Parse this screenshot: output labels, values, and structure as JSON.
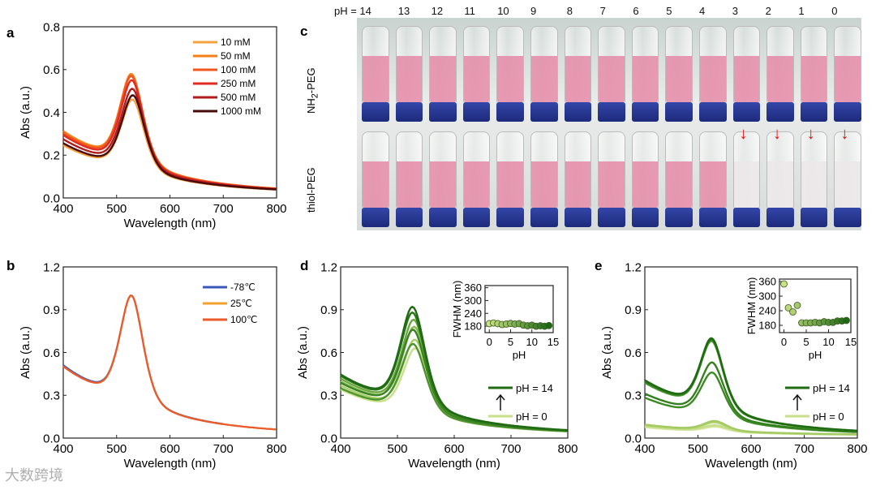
{
  "panel_labels": {
    "a": "a",
    "b": "b",
    "c": "c",
    "d": "d",
    "e": "e"
  },
  "watermark": "大数跨境",
  "photo": {
    "ph_prefix": "pH = ",
    "ph_values": [
      "14",
      "13",
      "12",
      "11",
      "10",
      "9",
      "8",
      "7",
      "6",
      "5",
      "4",
      "3",
      "2",
      "1",
      "0"
    ],
    "row_top_label": "NH",
    "row_top_sub": "2",
    "row_top_suffix": "-PEG",
    "row_bottom_label": "thiol-PEG",
    "liquid_color": "#e48aa6",
    "clear_color": "#ece8ea",
    "arrow_color": "#e01010",
    "bottom_row_arrows_on_ph": [
      "3",
      "2",
      "1",
      "0"
    ]
  },
  "chart_data": [
    {
      "id": "a",
      "type": "line",
      "xlabel": "Wavelength (nm)",
      "ylabel": "Abs (a.u.)",
      "xlim": [
        400,
        800
      ],
      "ylim": [
        0,
        0.8
      ],
      "xticks": [
        "400",
        "500",
        "600",
        "700",
        "800"
      ],
      "yticks": [
        "0.0",
        "0.2",
        "0.4",
        "0.6",
        "0.8"
      ],
      "legend_position": "top-right",
      "series": [
        {
          "name": "10 mM",
          "color": "#f5a33c",
          "peak_nm": 530,
          "peak_abs": 0.46,
          "abs_400": 0.24
        },
        {
          "name": "50 mM",
          "color": "#f57f17",
          "peak_nm": 528,
          "peak_abs": 0.58,
          "abs_400": 0.31
        },
        {
          "name": "100 mM",
          "color": "#f0561e",
          "peak_nm": 528,
          "peak_abs": 0.57,
          "abs_400": 0.3
        },
        {
          "name": "250 mM",
          "color": "#e02a22",
          "peak_nm": 529,
          "peak_abs": 0.55,
          "abs_400": 0.29
        },
        {
          "name": "500 mM",
          "color": "#b01b1b",
          "peak_nm": 530,
          "peak_abs": 0.51,
          "abs_400": 0.27
        },
        {
          "name": "1000 mM",
          "color": "#4a0a0a",
          "peak_nm": 531,
          "peak_abs": 0.48,
          "abs_400": 0.25
        }
      ]
    },
    {
      "id": "b",
      "type": "line",
      "xlabel": "Wavelength (nm)",
      "ylabel": "Abs (a.u.)",
      "xlim": [
        400,
        800
      ],
      "ylim": [
        0,
        1.2
      ],
      "xticks": [
        "400",
        "500",
        "600",
        "700",
        "800"
      ],
      "yticks": [
        "0.0",
        "0.3",
        "0.6",
        "0.9",
        "1.2"
      ],
      "legend_position": "top-right",
      "series": [
        {
          "name": "-78℃",
          "color": "#3b58b8",
          "peak_nm": 528,
          "peak_abs": 1.0,
          "abs_400": 0.52,
          "end_nm": 700
        },
        {
          "name": "25℃",
          "color": "#f3a02c",
          "peak_nm": 528,
          "peak_abs": 1.0,
          "abs_400": 0.51,
          "end_nm": 800
        },
        {
          "name": "100℃",
          "color": "#ea5a2a",
          "peak_nm": 528,
          "peak_abs": 1.0,
          "abs_400": 0.51,
          "end_nm": 800
        }
      ]
    },
    {
      "id": "d",
      "type": "line",
      "xlabel": "Wavelength (nm)",
      "ylabel": "Abs (a.u.)",
      "xlim": [
        400,
        800
      ],
      "ylim": [
        0,
        1.2
      ],
      "xticks": [
        "400",
        "500",
        "600",
        "700",
        "800"
      ],
      "yticks": [
        "0.0",
        "0.3",
        "0.6",
        "0.9",
        "1.2"
      ],
      "legend": {
        "top": "pH = 14",
        "bottom": "pH = 0",
        "top_color": "#1e6b12",
        "bottom_color": "#c9e08a"
      },
      "series": [
        {
          "name": "pH 0",
          "color": "#c9e08a",
          "peak_nm": 532,
          "peak_abs": 0.63,
          "abs_400": 0.34
        },
        {
          "name": "pH 2",
          "color": "#a8cf6a",
          "peak_nm": 531,
          "peak_abs": 0.69,
          "abs_400": 0.37
        },
        {
          "name": "pH 4",
          "color": "#86bb52",
          "peak_nm": 530,
          "peak_abs": 0.78,
          "abs_400": 0.4
        },
        {
          "name": "pH 6",
          "color": "#6aa83e",
          "peak_nm": 529,
          "peak_abs": 0.83,
          "abs_400": 0.42
        },
        {
          "name": "pH 8",
          "color": "#4e942e",
          "peak_nm": 528,
          "peak_abs": 0.66,
          "abs_400": 0.35
        },
        {
          "name": "pH 10",
          "color": "#3a8222",
          "peak_nm": 528,
          "peak_abs": 0.76,
          "abs_400": 0.39
        },
        {
          "name": "pH 12",
          "color": "#2a7318",
          "peak_nm": 527,
          "peak_abs": 0.88,
          "abs_400": 0.44
        },
        {
          "name": "pH 14",
          "color": "#1e6b12",
          "peak_nm": 527,
          "peak_abs": 0.92,
          "abs_400": 0.45
        }
      ],
      "inset": {
        "type": "scatter",
        "xlabel": "pH",
        "ylabel": "FWHM (nm)",
        "xlim": [
          -1,
          15
        ],
        "ylim": [
          150,
          370
        ],
        "xticks": [
          "0",
          "5",
          "10",
          "15"
        ],
        "yticks": [
          "180",
          "240",
          "300",
          "360"
        ],
        "x": [
          0,
          1,
          2,
          3,
          4,
          5,
          6,
          7,
          8,
          9,
          10,
          11,
          12,
          13,
          14
        ],
        "y": [
          192,
          195,
          192,
          188,
          190,
          193,
          190,
          192,
          185,
          182,
          185,
          180,
          182,
          180,
          183
        ]
      }
    },
    {
      "id": "e",
      "type": "line",
      "xlabel": "Wavelength (nm)",
      "ylabel": "Abs (a.u.)",
      "xlim": [
        400,
        800
      ],
      "ylim": [
        0,
        1.2
      ],
      "xticks": [
        "400",
        "500",
        "600",
        "700",
        "800"
      ],
      "yticks": [
        "0.0",
        "0.3",
        "0.6",
        "0.9",
        "1.2"
      ],
      "legend": {
        "top": "pH = 14",
        "bottom": "pH = 0",
        "top_color": "#1e6b12",
        "bottom_color": "#c9e08a"
      },
      "series": [
        {
          "name": "pH 0",
          "color": "#d4e69a",
          "peak_nm": 533,
          "peak_abs": 0.08,
          "abs_400": 0.06
        },
        {
          "name": "pH 1",
          "color": "#c4dd86",
          "peak_nm": 533,
          "peak_abs": 0.09,
          "abs_400": 0.07
        },
        {
          "name": "pH 2",
          "color": "#b4d474",
          "peak_nm": 532,
          "peak_abs": 0.11,
          "abs_400": 0.075
        },
        {
          "name": "pH 3",
          "color": "#a4ca64",
          "peak_nm": 532,
          "peak_abs": 0.12,
          "abs_400": 0.08
        },
        {
          "name": "pH 4",
          "color": "#3d8a25",
          "peak_nm": 527,
          "peak_abs": 0.46,
          "abs_400": 0.28
        },
        {
          "name": "pH 5",
          "color": "#347f1e",
          "peak_nm": 527,
          "peak_abs": 0.53,
          "abs_400": 0.31
        },
        {
          "name": "pH 8",
          "color": "#4e9a33",
          "peak_nm": 526,
          "peak_abs": 0.68,
          "abs_400": 0.39
        },
        {
          "name": "pH 11",
          "color": "#2e7a1c",
          "peak_nm": 526,
          "peak_abs": 0.69,
          "abs_400": 0.4
        },
        {
          "name": "pH 14",
          "color": "#1e6b12",
          "peak_nm": 526,
          "peak_abs": 0.7,
          "abs_400": 0.41
        }
      ],
      "inset": {
        "type": "scatter",
        "xlabel": "pH",
        "ylabel": "FWHM (nm)",
        "xlim": [
          -1,
          15
        ],
        "ylim": [
          150,
          370
        ],
        "xticks": [
          "0",
          "5",
          "10",
          "15"
        ],
        "yticks": [
          "180",
          "240",
          "300",
          "360"
        ],
        "x": [
          0,
          1,
          2,
          3,
          4,
          5,
          6,
          7,
          8,
          9,
          10,
          11,
          12,
          13,
          14
        ],
        "y": [
          350,
          252,
          235,
          262,
          190,
          190,
          190,
          192,
          190,
          195,
          192,
          192,
          198,
          198,
          200
        ]
      }
    }
  ]
}
